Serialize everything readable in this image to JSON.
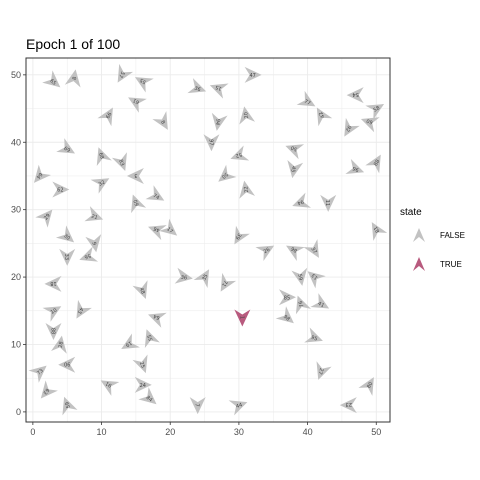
{
  "chart_data": {
    "type": "scatter",
    "title": "Epoch 1 of 100",
    "xlim": [
      -1,
      52
    ],
    "ylim": [
      -1.5,
      52.5
    ],
    "xticks": [
      0,
      10,
      20,
      30,
      40,
      50
    ],
    "yticks": [
      0,
      10,
      20,
      30,
      40,
      50
    ],
    "grid": true,
    "legend": {
      "title": "state",
      "position": "right",
      "entries": [
        {
          "label": "FALSE",
          "color": "#c2c2c2"
        },
        {
          "label": "TRUE",
          "color": "#b85a7e"
        }
      ]
    },
    "colors": {
      "FALSE": "#c2c2c2",
      "TRUE": "#b85a7e"
    },
    "points": [
      {
        "x": 30.5,
        "y": 14,
        "angle": 90,
        "state": "TRUE",
        "label": "1"
      },
      {
        "x": 3,
        "y": 49,
        "angle": 40,
        "state": "FALSE",
        "label": "65"
      },
      {
        "x": 6,
        "y": 49.5,
        "angle": -80,
        "state": "FALSE",
        "label": "8"
      },
      {
        "x": 13,
        "y": 50,
        "angle": 120,
        "state": "FALSE",
        "label": "57"
      },
      {
        "x": 16,
        "y": 49,
        "angle": -150,
        "state": "FALSE",
        "label": "55"
      },
      {
        "x": 24,
        "y": 48,
        "angle": 20,
        "state": "FALSE",
        "label": "36"
      },
      {
        "x": 27,
        "y": 48,
        "angle": 200,
        "state": "FALSE",
        "label": "15"
      },
      {
        "x": 32,
        "y": 50,
        "angle": 0,
        "state": "FALSE",
        "label": "47"
      },
      {
        "x": 40,
        "y": 46,
        "angle": 30,
        "state": "FALSE",
        "label": "77"
      },
      {
        "x": 47,
        "y": 47,
        "angle": 180,
        "state": "FALSE",
        "label": "54"
      },
      {
        "x": 50,
        "y": 45,
        "angle": -30,
        "state": "FALSE",
        "label": "58"
      },
      {
        "x": 11,
        "y": 44,
        "angle": -60,
        "state": "FALSE",
        "label": "66"
      },
      {
        "x": 15,
        "y": 46,
        "angle": 210,
        "state": "FALSE",
        "label": "61"
      },
      {
        "x": 19,
        "y": 43,
        "angle": 60,
        "state": "FALSE",
        "label": "8"
      },
      {
        "x": 27,
        "y": 43,
        "angle": 100,
        "state": "FALSE",
        "label": "94"
      },
      {
        "x": 31,
        "y": 44,
        "angle": -100,
        "state": "FALSE",
        "label": "20"
      },
      {
        "x": 42,
        "y": 44,
        "angle": -120,
        "state": "FALSE",
        "label": "42"
      },
      {
        "x": 46,
        "y": 42,
        "angle": 120,
        "state": "FALSE",
        "label": "92"
      },
      {
        "x": 49,
        "y": 43,
        "angle": 200,
        "state": "FALSE",
        "label": "60"
      },
      {
        "x": 26,
        "y": 40,
        "angle": 90,
        "state": "FALSE",
        "label": "97"
      },
      {
        "x": 30,
        "y": 38,
        "angle": 160,
        "state": "FALSE",
        "label": "52"
      },
      {
        "x": 5,
        "y": 39,
        "angle": 30,
        "state": "FALSE",
        "label": "69"
      },
      {
        "x": 10,
        "y": 38,
        "angle": 250,
        "state": "FALSE",
        "label": "89"
      },
      {
        "x": 13,
        "y": 37,
        "angle": 70,
        "state": "FALSE",
        "label": "83"
      },
      {
        "x": 38,
        "y": 39,
        "angle": 200,
        "state": "FALSE",
        "label": "50"
      },
      {
        "x": 38,
        "y": 36,
        "angle": 100,
        "state": "FALSE",
        "label": "45"
      },
      {
        "x": 47,
        "y": 36,
        "angle": 20,
        "state": "FALSE",
        "label": "96"
      },
      {
        "x": 50,
        "y": 37,
        "angle": -60,
        "state": "FALSE",
        "label": "88"
      },
      {
        "x": 1,
        "y": 35,
        "angle": 130,
        "state": "FALSE",
        "label": "64"
      },
      {
        "x": 4,
        "y": 33,
        "angle": 0,
        "state": "FALSE",
        "label": "62"
      },
      {
        "x": 10,
        "y": 34,
        "angle": -30,
        "state": "FALSE",
        "label": "32"
      },
      {
        "x": 15,
        "y": 35,
        "angle": 180,
        "state": "FALSE",
        "label": "3"
      },
      {
        "x": 18,
        "y": 32,
        "angle": 30,
        "state": "FALSE",
        "label": "74"
      },
      {
        "x": 28,
        "y": 35,
        "angle": 140,
        "state": "FALSE",
        "label": "50"
      },
      {
        "x": 31,
        "y": 33,
        "angle": -100,
        "state": "FALSE",
        "label": "22"
      },
      {
        "x": 39,
        "y": 31,
        "angle": 160,
        "state": "FALSE",
        "label": "94"
      },
      {
        "x": 43,
        "y": 31,
        "angle": 90,
        "state": "FALSE",
        "label": "11"
      },
      {
        "x": 2,
        "y": 29,
        "angle": -50,
        "state": "FALSE",
        "label": "29"
      },
      {
        "x": 9,
        "y": 29,
        "angle": 20,
        "state": "FALSE",
        "label": "21"
      },
      {
        "x": 15,
        "y": 31,
        "angle": 250,
        "state": "FALSE",
        "label": "60"
      },
      {
        "x": 5,
        "y": 26,
        "angle": 40,
        "state": "FALSE",
        "label": "30"
      },
      {
        "x": 9,
        "y": 25,
        "angle": 80,
        "state": "FALSE",
        "label": "9"
      },
      {
        "x": 18,
        "y": 27,
        "angle": 200,
        "state": "FALSE",
        "label": "46"
      },
      {
        "x": 20,
        "y": 27,
        "angle": 40,
        "state": "FALSE",
        "label": "17"
      },
      {
        "x": 30,
        "y": 26,
        "angle": 120,
        "state": "FALSE",
        "label": "39"
      },
      {
        "x": 34,
        "y": 24,
        "angle": -30,
        "state": "FALSE",
        "label": "26"
      },
      {
        "x": 38,
        "y": 24,
        "angle": 210,
        "state": "FALSE",
        "label": "86"
      },
      {
        "x": 41,
        "y": 24,
        "angle": 60,
        "state": "FALSE",
        "label": "37"
      },
      {
        "x": 50,
        "y": 27,
        "angle": -120,
        "state": "FALSE",
        "label": "81"
      },
      {
        "x": 5,
        "y": 23,
        "angle": 90,
        "state": "FALSE",
        "label": "33"
      },
      {
        "x": 8,
        "y": 23,
        "angle": 160,
        "state": "FALSE",
        "label": "56"
      },
      {
        "x": 22,
        "y": 20,
        "angle": 10,
        "state": "FALSE",
        "label": "36"
      },
      {
        "x": 25,
        "y": 20,
        "angle": 300,
        "state": "FALSE",
        "label": "35"
      },
      {
        "x": 28,
        "y": 19,
        "angle": 120,
        "state": "FALSE",
        "label": "71"
      },
      {
        "x": 39,
        "y": 20,
        "angle": 80,
        "state": "FALSE",
        "label": "59"
      },
      {
        "x": 41,
        "y": 20,
        "angle": 220,
        "state": "FALSE",
        "label": "13"
      },
      {
        "x": 3,
        "y": 19,
        "angle": 180,
        "state": "FALSE",
        "label": "18"
      },
      {
        "x": 16,
        "y": 18,
        "angle": 70,
        "state": "FALSE",
        "label": "48"
      },
      {
        "x": 37,
        "y": 17,
        "angle": 0,
        "state": "FALSE",
        "label": "85"
      },
      {
        "x": 39,
        "y": 16,
        "angle": 250,
        "state": "FALSE",
        "label": "76"
      },
      {
        "x": 42,
        "y": 16,
        "angle": 30,
        "state": "FALSE",
        "label": "41"
      },
      {
        "x": 3,
        "y": 15,
        "angle": -30,
        "state": "FALSE",
        "label": "10"
      },
      {
        "x": 7,
        "y": 15,
        "angle": 120,
        "state": "FALSE",
        "label": "43"
      },
      {
        "x": 18,
        "y": 14,
        "angle": 200,
        "state": "FALSE",
        "label": "64"
      },
      {
        "x": 37,
        "y": 14,
        "angle": 40,
        "state": "FALSE",
        "label": "98"
      },
      {
        "x": 3,
        "y": 12,
        "angle": 90,
        "state": "FALSE",
        "label": "88"
      },
      {
        "x": 4,
        "y": 10,
        "angle": -80,
        "state": "FALSE",
        "label": "28"
      },
      {
        "x": 14,
        "y": 10,
        "angle": 150,
        "state": "FALSE",
        "label": "19"
      },
      {
        "x": 17,
        "y": 11,
        "angle": 250,
        "state": "FALSE",
        "label": "55"
      },
      {
        "x": 41,
        "y": 11,
        "angle": 20,
        "state": "FALSE",
        "label": "95"
      },
      {
        "x": 5,
        "y": 7,
        "angle": 180,
        "state": "FALSE",
        "label": "90"
      },
      {
        "x": 16,
        "y": 7,
        "angle": 70,
        "state": "FALSE",
        "label": "25"
      },
      {
        "x": 1,
        "y": 6,
        "angle": -40,
        "state": "FALSE",
        "label": "73"
      },
      {
        "x": 42,
        "y": 6,
        "angle": 110,
        "state": "FALSE",
        "label": "27"
      },
      {
        "x": 11,
        "y": 4,
        "angle": 210,
        "state": "FALSE",
        "label": "91"
      },
      {
        "x": 16,
        "y": 4,
        "angle": 0,
        "state": "FALSE",
        "label": "24"
      },
      {
        "x": 49,
        "y": 4,
        "angle": 300,
        "state": "FALSE",
        "label": "80"
      },
      {
        "x": 2,
        "y": 3,
        "angle": 130,
        "state": "FALSE",
        "label": "63"
      },
      {
        "x": 17,
        "y": 2,
        "angle": 40,
        "state": "FALSE",
        "label": "84"
      },
      {
        "x": 5,
        "y": 1,
        "angle": 250,
        "state": "FALSE",
        "label": "59"
      },
      {
        "x": 24,
        "y": 1,
        "angle": 90,
        "state": "FALSE",
        "label": "7"
      },
      {
        "x": 30,
        "y": 1,
        "angle": -20,
        "state": "FALSE",
        "label": "44"
      },
      {
        "x": 46,
        "y": 1,
        "angle": 180,
        "state": "FALSE",
        "label": "23"
      }
    ]
  }
}
